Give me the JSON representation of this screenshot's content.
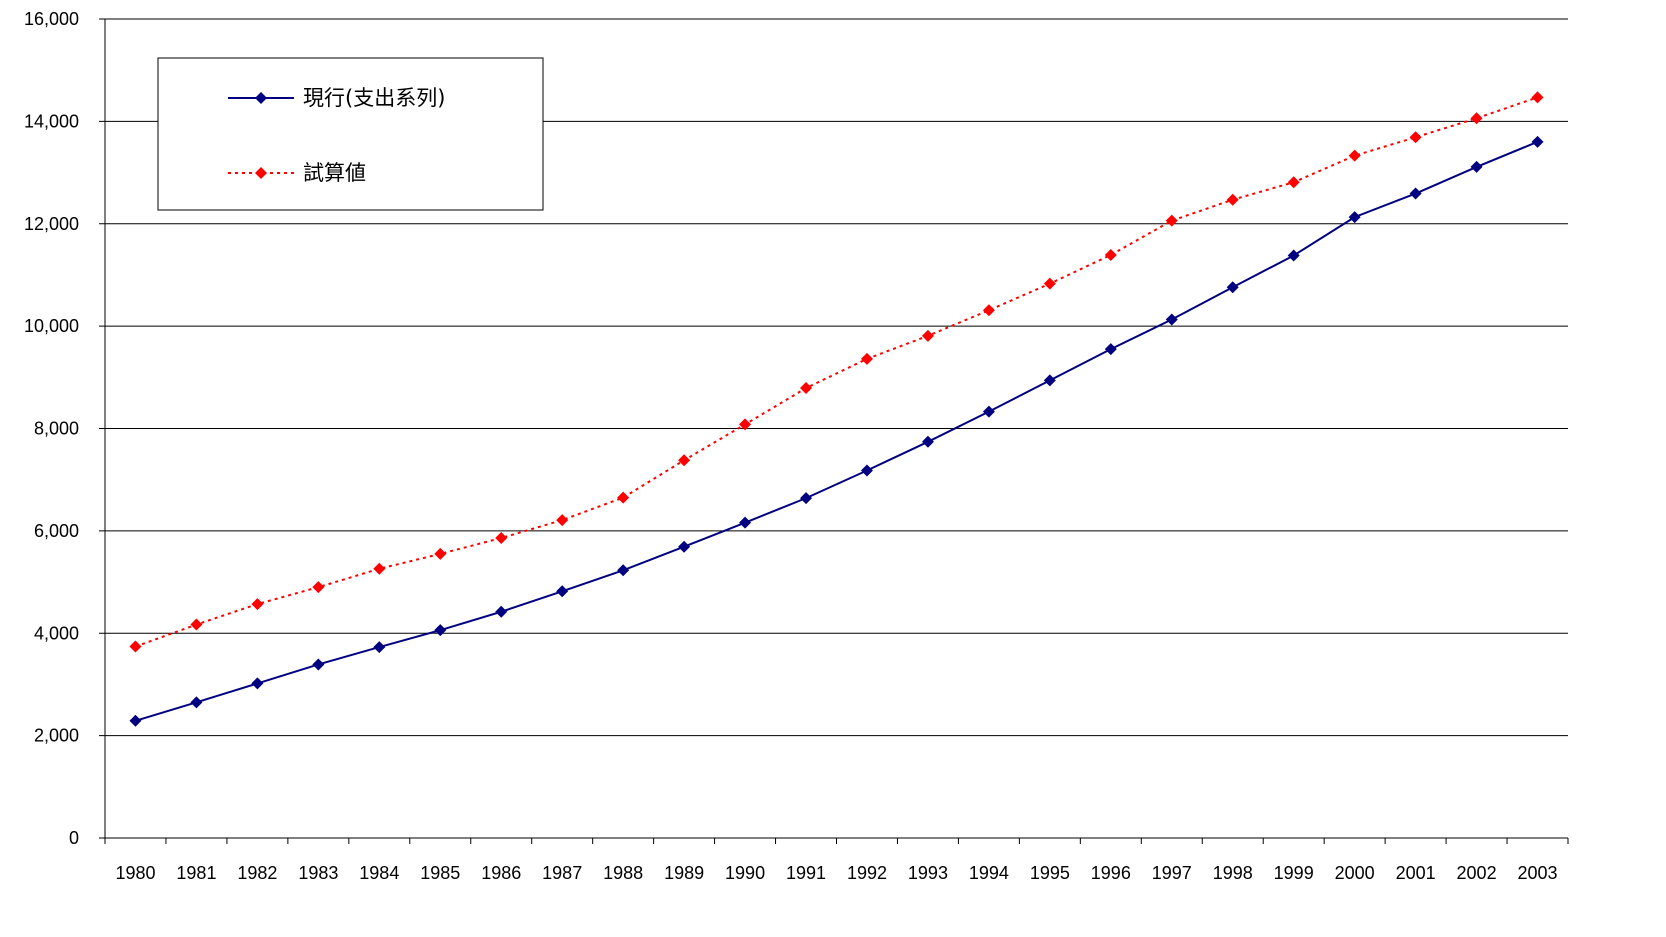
{
  "chart_data": {
    "type": "line",
    "categories": [
      "1980",
      "1981",
      "1982",
      "1983",
      "1984",
      "1985",
      "1986",
      "1987",
      "1988",
      "1989",
      "1990",
      "1991",
      "1992",
      "1993",
      "1994",
      "1995",
      "1996",
      "1997",
      "1998",
      "1999",
      "2000",
      "2001",
      "2002",
      "2003"
    ],
    "ylim": [
      0,
      16000
    ],
    "y_ticks": [
      "0",
      "2,000",
      "4,000",
      "6,000",
      "8,000",
      "10,000",
      "12,000",
      "14,000",
      "16,000"
    ],
    "y_tick_values": [
      0,
      2000,
      4000,
      6000,
      8000,
      10000,
      12000,
      14000,
      16000
    ],
    "grid": true,
    "legend_position": "top-left",
    "series": [
      {
        "name": "現行(支出系列)",
        "color": "#000080",
        "style": "solid",
        "marker": "diamond",
        "values": [
          2290,
          2650,
          3020,
          3390,
          3730,
          4060,
          4420,
          4820,
          5230,
          5690,
          6160,
          6640,
          7180,
          7740,
          8330,
          8940,
          9550,
          10130,
          10760,
          11380,
          12130,
          12590,
          13110,
          13600
        ]
      },
      {
        "name": "試算値",
        "color": "#ff0000",
        "style": "dotted",
        "marker": "diamond",
        "values": [
          3740,
          4170,
          4570,
          4900,
          5260,
          5550,
          5860,
          6210,
          6650,
          7380,
          8080,
          8790,
          9360,
          9810,
          10310,
          10830,
          11390,
          12060,
          12470,
          12810,
          13330,
          13690,
          14060,
          14470
        ]
      }
    ]
  }
}
